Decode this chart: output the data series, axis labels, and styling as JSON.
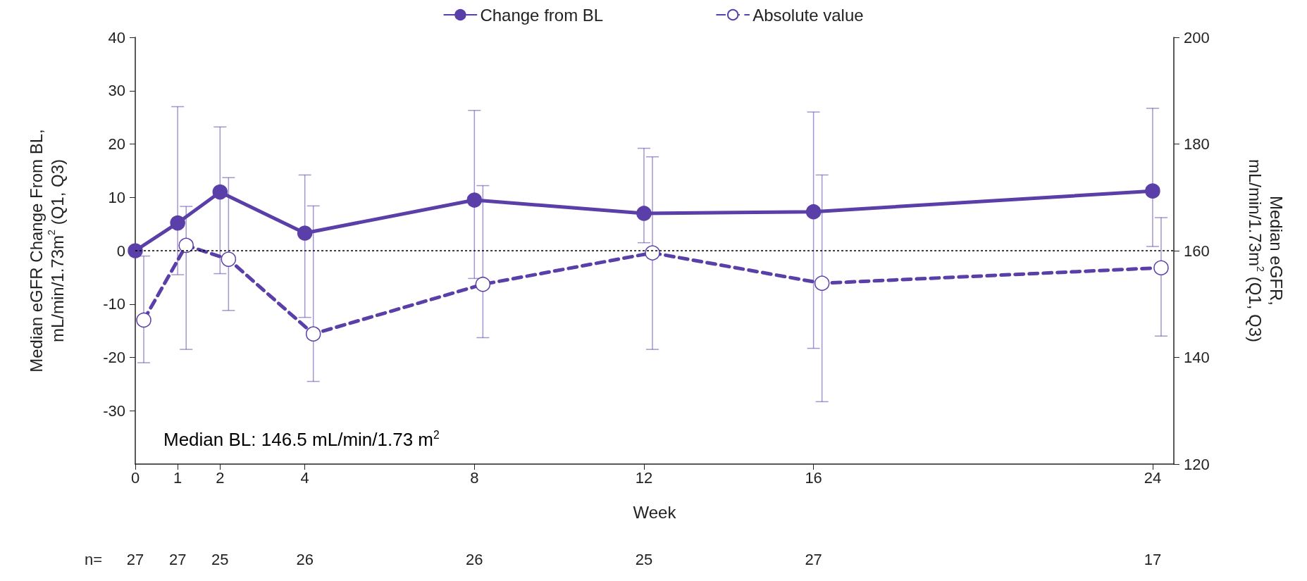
{
  "chart_data": {
    "type": "line",
    "xlabel": "Week",
    "ylabel": "Median eGFR Change From BL,\nmL/min/1.73m$^{2}$ (Q1, Q3)",
    "y2label": "Median eGFR,\nmL/min/1.73m$^{2}$ (Q1, Q3)",
    "xlim": [
      0,
      24.5
    ],
    "xticks": [
      0,
      1,
      2,
      4,
      8,
      12,
      16,
      24
    ],
    "ylim": [
      -40,
      40
    ],
    "yticks": [
      -30,
      -20,
      -10,
      0,
      10,
      20,
      30,
      40
    ],
    "y2lim": [
      120,
      200
    ],
    "y2ticks": [
      120,
      140,
      160,
      180,
      200
    ],
    "series": [
      {
        "name": "Change from BL",
        "color": "#5b3fa8",
        "line_style": "solid",
        "x": [
          0,
          1,
          2,
          4,
          8,
          12,
          16,
          24
        ],
        "values": [
          0,
          5.2,
          11,
          3.3,
          9.5,
          7,
          7.3,
          11.2
        ],
        "errors": [
          null,
          [
            -4.5,
            27
          ],
          [
            -4.3,
            23.2
          ],
          [
            -12.5,
            14.2
          ],
          [
            -5.2,
            26.3
          ],
          [
            1.5,
            19.2
          ],
          [
            -18.3,
            26
          ],
          [
            0.8,
            26.7
          ]
        ]
      },
      {
        "name": "Absolute value",
        "color": "#5b3fa8",
        "line_style": "dashed",
        "axis": "y2",
        "x": [
          0.2,
          1.2,
          2.2,
          4.2,
          8.2,
          12.2,
          16.2,
          24.2
        ],
        "values": [
          147,
          161,
          158.4,
          144.4,
          153.7,
          159.6,
          153.9,
          156.8
        ],
        "errors": [
          [
            139,
            159
          ],
          [
            141.5,
            168.3
          ],
          [
            148.8,
            173.7
          ],
          [
            135.5,
            168.4
          ],
          [
            143.7,
            172.2
          ],
          [
            141.5,
            177.6
          ],
          [
            131.7,
            174.2
          ],
          [
            144,
            166.2
          ]
        ]
      }
    ],
    "ref_lines": [
      {
        "axis": "y",
        "value": 0,
        "color": "#000000",
        "line_style": "dotted"
      }
    ],
    "annotations": [
      "Median BL: 146.5 mL/min/1.73 m$^{2}$",
      "n=",
      "27",
      "27",
      "25",
      "26",
      "26",
      "25",
      "27",
      "17"
    ],
    "marker": "circle",
    "grid": false,
    "legend": "top"
  }
}
